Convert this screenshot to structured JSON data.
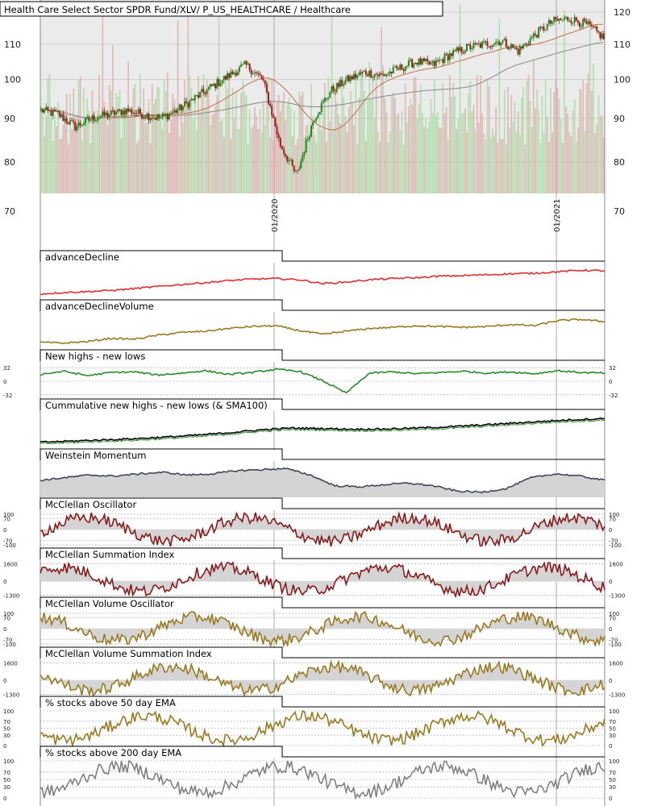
{
  "chart_data": [
    {
      "type": "candlestick",
      "title": "Health Care Select Sector SPDR Fund/XLV/ P_US_HEALTHCARE / Healthcare",
      "y_ticks": [
        120,
        110,
        100,
        90,
        80,
        70
      ],
      "ylim": [
        70,
        124
      ],
      "x_ticks": [
        "01/2020",
        "01/2021"
      ],
      "log_scale": true,
      "series": [
        {
          "name": "price",
          "color": "#1a7a1a",
          "approx_close": [
            92,
            91,
            88,
            90,
            91,
            92,
            91,
            90,
            92,
            95,
            98,
            101,
            104,
            100,
            84,
            77,
            90,
            97,
            100,
            102,
            101,
            103,
            105,
            104,
            107,
            109,
            110,
            111,
            108,
            113,
            117,
            118,
            116,
            112
          ]
        },
        {
          "name": "ma-short",
          "color": "#c0704a"
        },
        {
          "name": "ma-long",
          "color": "#888888"
        }
      ],
      "volume": "bars-behind-price"
    },
    {
      "type": "line",
      "title": "advanceDecline",
      "color": "#e03030",
      "approx_values": [
        10,
        15,
        18,
        22,
        28,
        35,
        42,
        48,
        55,
        60,
        62,
        58,
        45,
        50,
        58,
        62,
        65,
        70,
        72,
        75,
        78,
        80,
        85,
        90,
        88
      ]
    },
    {
      "type": "line",
      "title": "advanceDeclineVolume",
      "color": "#9a7a20",
      "approx_values": [
        20,
        18,
        22,
        30,
        28,
        38,
        45,
        48,
        55,
        60,
        62,
        50,
        40,
        48,
        55,
        58,
        62,
        60,
        58,
        60,
        65,
        62,
        75,
        78,
        72
      ]
    },
    {
      "type": "line",
      "title": "New highs - new lows",
      "color": "#2a8a2a",
      "y_ticks": [
        32,
        0,
        -32
      ],
      "ylim": [
        -40,
        40
      ],
      "approx_values": [
        0,
        5,
        -2,
        3,
        4,
        -1,
        2,
        6,
        0,
        3,
        8,
        5,
        -10,
        -30,
        2,
        4,
        1,
        3,
        5,
        2,
        4,
        1,
        6,
        3,
        2
      ]
    },
    {
      "type": "line",
      "title": "Cummulative new highs - new lows (& SMA100)",
      "series": [
        {
          "color": "#000000"
        },
        {
          "color": "#2a8a2a"
        }
      ],
      "approx_values": [
        0,
        5,
        10,
        15,
        22,
        30,
        40,
        52,
        60,
        58,
        55,
        56,
        60,
        65,
        72,
        80,
        88,
        95,
        100
      ]
    },
    {
      "type": "area",
      "title": "Weinstein Momentum",
      "color": "#44445a",
      "approx_values": [
        50,
        55,
        60,
        58,
        62,
        65,
        60,
        62,
        68,
        70,
        72,
        60,
        40,
        38,
        42,
        45,
        40,
        30,
        28,
        35,
        55,
        62,
        58,
        50
      ]
    },
    {
      "type": "area",
      "title": "McClellan Oscillator",
      "color": "#8a1a1a",
      "y_ticks": [
        100,
        70,
        0,
        -70,
        -100
      ],
      "ylim": [
        -110,
        110
      ]
    },
    {
      "type": "area",
      "title": "McClellan Summation Index",
      "color": "#8a1a1a",
      "y_ticks": [
        1600,
        0,
        -1300
      ],
      "ylim": [
        -1400,
        1700
      ]
    },
    {
      "type": "area",
      "title": "McClellan Volume Oscillator",
      "color": "#9a7a20",
      "y_ticks": [
        100,
        70,
        0,
        -70,
        -100
      ],
      "ylim": [
        -110,
        110
      ]
    },
    {
      "type": "area",
      "title": "McClellan Volume Summation Index",
      "color": "#9a7a20",
      "y_ticks": [
        1600,
        0,
        -1300
      ],
      "ylim": [
        -1400,
        1700
      ]
    },
    {
      "type": "line",
      "title": "% stocks above 50 day EMA",
      "color": "#9a7a20",
      "y_ticks": [
        100,
        70,
        50,
        30,
        0
      ],
      "ylim": [
        0,
        100
      ]
    },
    {
      "type": "line",
      "title": "% stocks above 200 day EMA",
      "color": "#808080",
      "y_ticks": [
        100,
        70,
        50,
        30,
        0
      ],
      "ylim": [
        0,
        100
      ]
    }
  ]
}
